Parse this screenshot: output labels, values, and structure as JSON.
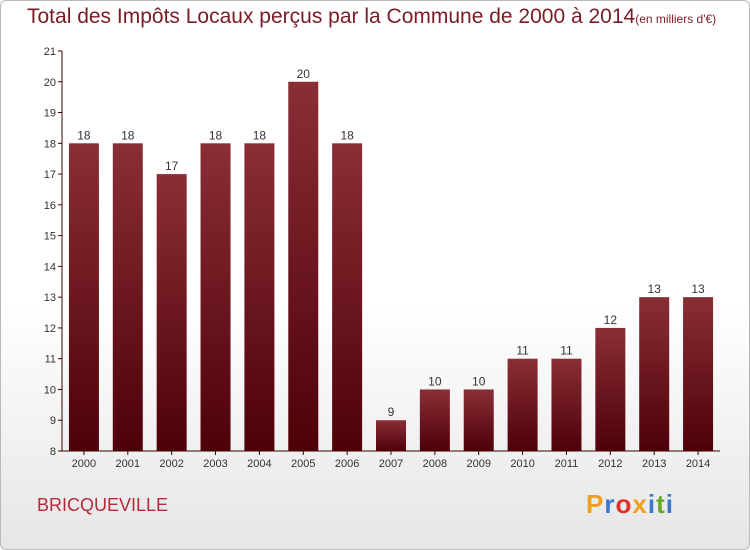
{
  "title": "Total des Impôts Locaux perçus par la Commune de 2000 à 2014",
  "unit": "(en milliers d'€)",
  "commune": "BRICQUEVILLE",
  "logo": {
    "text": "Proxiti",
    "letters": [
      {
        "ch": "P",
        "color": "#f0a020"
      },
      {
        "ch": "r",
        "color": "#3a78c8"
      },
      {
        "ch": "o",
        "color": "#e0302a"
      },
      {
        "ch": "x",
        "color": "#f0a020"
      },
      {
        "ch": "i",
        "color": "#3a78c8"
      },
      {
        "ch": "t",
        "color": "#6aa52a"
      },
      {
        "ch": "i",
        "color": "#3a78c8"
      }
    ]
  },
  "colors": {
    "bar_top": "#8a2e36",
    "bar_bottom": "#4e0008",
    "axis": "#3a0000",
    "title": "#7a1c26",
    "label": "#333333"
  },
  "chart_data": {
    "type": "bar",
    "categories": [
      "2000",
      "2001",
      "2002",
      "2003",
      "2004",
      "2005",
      "2006",
      "2007",
      "2008",
      "2009",
      "2010",
      "2011",
      "2012",
      "2013",
      "2014"
    ],
    "values": [
      18,
      18,
      17,
      18,
      18,
      20,
      18,
      9,
      10,
      10,
      11,
      11,
      12,
      13,
      13
    ],
    "ylim": [
      8,
      21
    ],
    "yticks": [
      8,
      9,
      10,
      11,
      12,
      13,
      14,
      15,
      16,
      17,
      18,
      19,
      20,
      21
    ],
    "grid": false,
    "data_labels": true
  }
}
